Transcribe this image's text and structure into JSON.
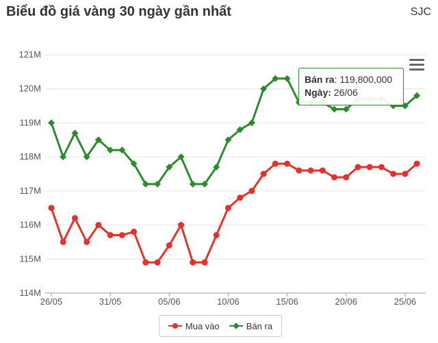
{
  "header": {
    "title": "Biểu đồ giá vàng 30 ngày gần nhất",
    "brand": "SJC"
  },
  "tooltip": {
    "series_label": "Bán ra",
    "value": "119,800,000",
    "date_label": "Ngày:",
    "date_value": "26/06"
  },
  "chart_data": {
    "type": "line",
    "x_ticks": [
      "26/05",
      "31/05",
      "05/06",
      "10/06",
      "15/06",
      "20/06",
      "25/06"
    ],
    "y_ticks": [
      "114M",
      "115M",
      "116M",
      "117M",
      "118M",
      "119M",
      "120M",
      "121M"
    ],
    "ylim": [
      114,
      121
    ],
    "y_unit": "M",
    "grid": true,
    "legend_position": "bottom-center",
    "series": [
      {
        "name": "Mua vào",
        "color": "#e8302a",
        "marker": "circle",
        "values": [
          116.5,
          115.5,
          116.2,
          115.5,
          116.0,
          115.7,
          115.7,
          115.8,
          114.9,
          114.9,
          115.4,
          116.0,
          114.9,
          114.9,
          115.7,
          116.5,
          116.8,
          117.0,
          117.5,
          117.8,
          117.8,
          117.6,
          117.6,
          117.6,
          117.4,
          117.4,
          117.7,
          117.7,
          117.7,
          117.5,
          117.5,
          117.8
        ]
      },
      {
        "name": "Bán ra",
        "color": "#2d8a2d",
        "marker": "diamond",
        "values": [
          119.0,
          118.0,
          118.7,
          118.0,
          118.5,
          118.2,
          118.2,
          117.8,
          117.2,
          117.2,
          117.7,
          118.0,
          117.2,
          117.2,
          117.7,
          118.5,
          118.8,
          119.0,
          120.0,
          120.3,
          120.3,
          119.6,
          119.6,
          119.6,
          119.4,
          119.4,
          119.7,
          119.7,
          119.7,
          119.5,
          119.5,
          119.8
        ]
      }
    ]
  }
}
